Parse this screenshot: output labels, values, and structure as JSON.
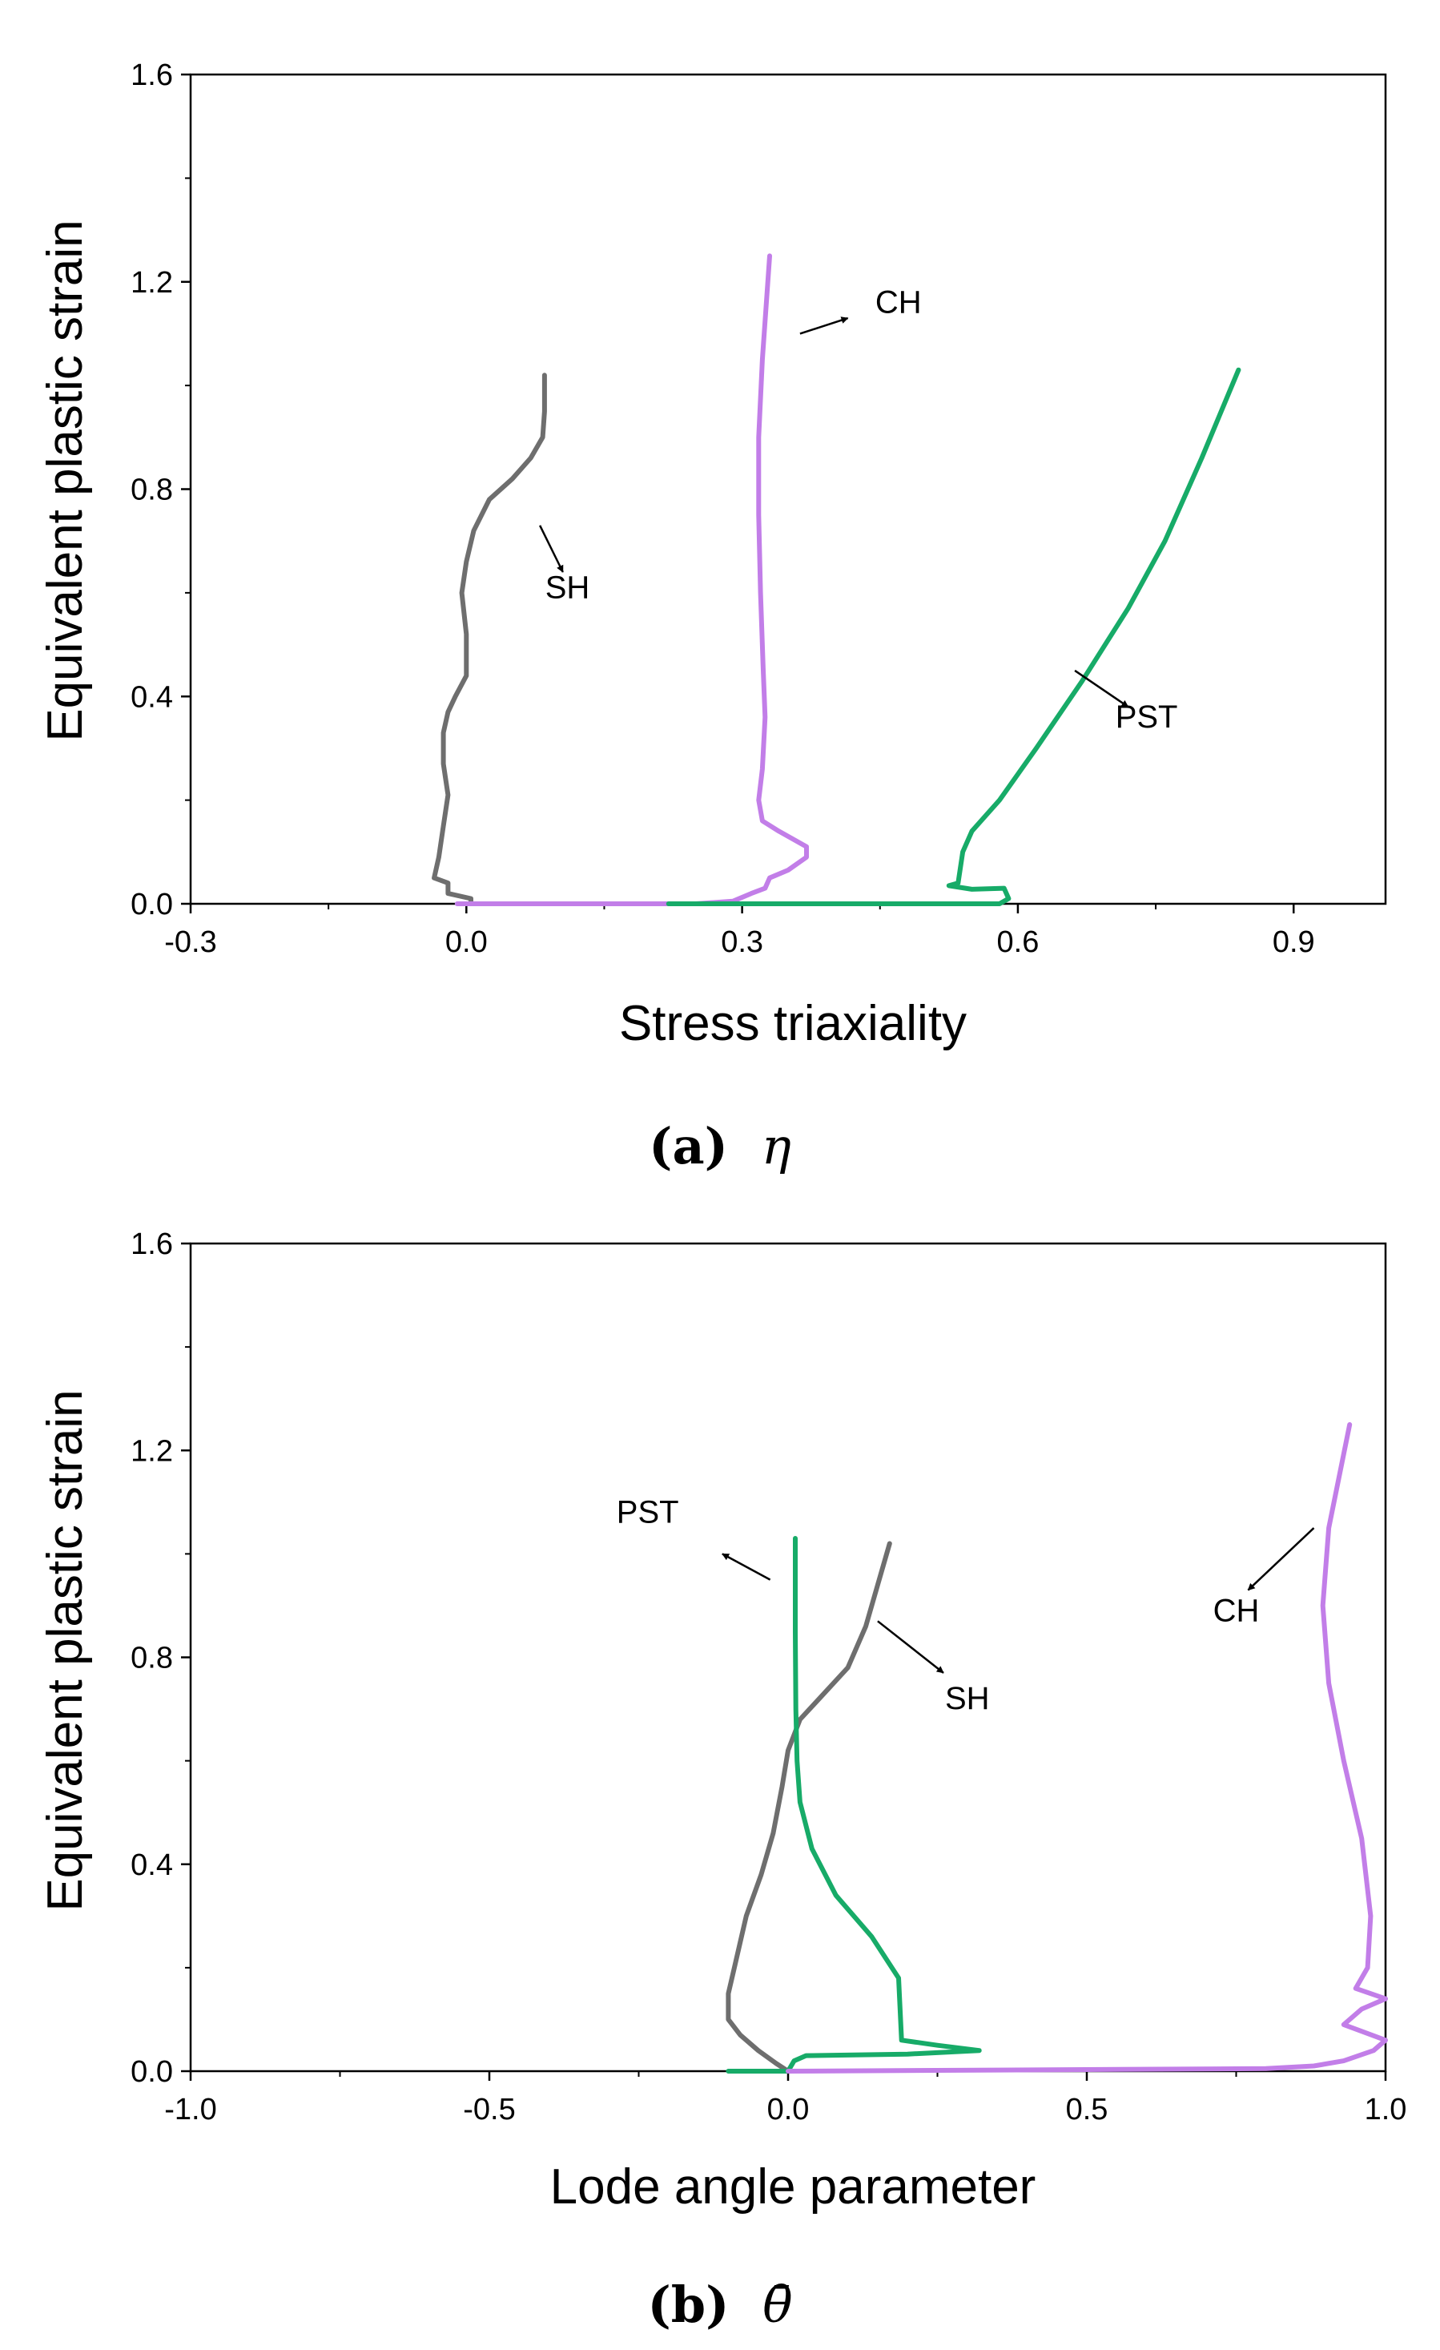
{
  "colors": {
    "SH": "#6e6e6e",
    "CH": "#c27ee8",
    "PST": "#17ab68"
  },
  "chart_data": [
    {
      "type": "line",
      "xlabel": "Stress triaxiality",
      "ylabel": "Equivalent plastic strain",
      "xlim": [
        -0.3,
        1.0
      ],
      "ylim": [
        0.0,
        1.6
      ],
      "xticks": [
        -0.3,
        0.0,
        0.3,
        0.6,
        0.9
      ],
      "xtick_labels": [
        "-0.3",
        "0.0",
        "0.3",
        "0.6",
        "0.9"
      ],
      "yticks": [
        0.0,
        0.4,
        0.8,
        1.2,
        1.6
      ],
      "ytick_labels": [
        "0.0",
        "0.4",
        "0.8",
        "1.2",
        "1.6"
      ],
      "caption": {
        "letter": "(a)",
        "symbol": "η"
      },
      "series": [
        {
          "name": "SH",
          "color": "#6e6e6e",
          "points": [
            [
              0.005,
              0.0
            ],
            [
              0.005,
              0.01
            ],
            [
              -0.02,
              0.02
            ],
            [
              -0.02,
              0.04
            ],
            [
              -0.035,
              0.05
            ],
            [
              -0.03,
              0.09
            ],
            [
              -0.025,
              0.15
            ],
            [
              -0.02,
              0.21
            ],
            [
              -0.025,
              0.27
            ],
            [
              -0.025,
              0.33
            ],
            [
              -0.02,
              0.37
            ],
            [
              -0.012,
              0.4
            ],
            [
              0.0,
              0.44
            ],
            [
              0.0,
              0.52
            ],
            [
              -0.005,
              0.6
            ],
            [
              0.0,
              0.66
            ],
            [
              0.008,
              0.72
            ],
            [
              0.025,
              0.78
            ],
            [
              0.05,
              0.82
            ],
            [
              0.07,
              0.86
            ],
            [
              0.083,
              0.9
            ],
            [
              0.085,
              0.95
            ],
            [
              0.085,
              1.02
            ]
          ]
        },
        {
          "name": "CH",
          "color": "#c27ee8",
          "points": [
            [
              -0.01,
              0.0
            ],
            [
              0.25,
              0.0
            ],
            [
              0.29,
              0.005
            ],
            [
              0.31,
              0.02
            ],
            [
              0.325,
              0.03
            ],
            [
              0.33,
              0.05
            ],
            [
              0.35,
              0.065
            ],
            [
              0.37,
              0.09
            ],
            [
              0.37,
              0.11
            ],
            [
              0.34,
              0.14
            ],
            [
              0.322,
              0.16
            ],
            [
              0.318,
              0.2
            ],
            [
              0.322,
              0.26
            ],
            [
              0.325,
              0.36
            ],
            [
              0.323,
              0.45
            ],
            [
              0.32,
              0.6
            ],
            [
              0.318,
              0.75
            ],
            [
              0.318,
              0.9
            ],
            [
              0.322,
              1.05
            ],
            [
              0.33,
              1.25
            ]
          ]
        },
        {
          "name": "PST",
          "color": "#17ab68",
          "points": [
            [
              0.22,
              0.0
            ],
            [
              0.58,
              0.0
            ],
            [
              0.59,
              0.01
            ],
            [
              0.585,
              0.03
            ],
            [
              0.55,
              0.028
            ],
            [
              0.525,
              0.035
            ],
            [
              0.535,
              0.04
            ],
            [
              0.54,
              0.1
            ],
            [
              0.55,
              0.14
            ],
            [
              0.58,
              0.2
            ],
            [
              0.62,
              0.3
            ],
            [
              0.67,
              0.43
            ],
            [
              0.72,
              0.57
            ],
            [
              0.76,
              0.7
            ],
            [
              0.8,
              0.86
            ],
            [
              0.84,
              1.03
            ]
          ]
        }
      ],
      "annotations": [
        {
          "text": "SH",
          "x": 0.11,
          "y": 0.59
        },
        {
          "text": "CH",
          "x": 0.47,
          "y": 1.14
        },
        {
          "text": "PST",
          "x": 0.74,
          "y": 0.34
        }
      ]
    },
    {
      "type": "line",
      "xlabel": "Lode angle parameter",
      "ylabel": "Equivalent plastic strain",
      "xlim": [
        -1.0,
        1.0
      ],
      "ylim": [
        0.0,
        1.6
      ],
      "xticks": [
        -1.0,
        -0.5,
        0.0,
        0.5,
        1.0
      ],
      "xtick_labels": [
        "-1.0",
        "-0.5",
        "0.0",
        "0.5",
        "1.0"
      ],
      "yticks": [
        0.0,
        0.4,
        0.8,
        1.2,
        1.6
      ],
      "ytick_labels": [
        "0.0",
        "0.4",
        "0.8",
        "1.2",
        "1.6"
      ],
      "caption": {
        "letter": "(b)",
        "symbol": "θ̄"
      },
      "series": [
        {
          "name": "SH",
          "color": "#6e6e6e",
          "points": [
            [
              0.0,
              0.0
            ],
            [
              -0.02,
              0.015
            ],
            [
              -0.05,
              0.04
            ],
            [
              -0.08,
              0.07
            ],
            [
              -0.1,
              0.1
            ],
            [
              -0.1,
              0.15
            ],
            [
              -0.09,
              0.2
            ],
            [
              -0.07,
              0.3
            ],
            [
              -0.045,
              0.38
            ],
            [
              -0.025,
              0.46
            ],
            [
              -0.01,
              0.55
            ],
            [
              0.0,
              0.62
            ],
            [
              0.02,
              0.68
            ],
            [
              0.06,
              0.73
            ],
            [
              0.1,
              0.78
            ],
            [
              0.13,
              0.86
            ],
            [
              0.15,
              0.94
            ],
            [
              0.17,
              1.02
            ]
          ]
        },
        {
          "name": "PST",
          "color": "#17ab68",
          "points": [
            [
              -0.1,
              0.0
            ],
            [
              0.0,
              0.0
            ],
            [
              0.01,
              0.02
            ],
            [
              0.03,
              0.03
            ],
            [
              0.2,
              0.033
            ],
            [
              0.32,
              0.04
            ],
            [
              0.25,
              0.05
            ],
            [
              0.19,
              0.06
            ],
            [
              0.185,
              0.18
            ],
            [
              0.14,
              0.26
            ],
            [
              0.08,
              0.34
            ],
            [
              0.04,
              0.43
            ],
            [
              0.02,
              0.52
            ],
            [
              0.015,
              0.6
            ],
            [
              0.013,
              0.7
            ],
            [
              0.012,
              0.85
            ],
            [
              0.012,
              1.03
            ]
          ]
        },
        {
          "name": "CH",
          "color": "#c27ee8",
          "points": [
            [
              0.0,
              0.0
            ],
            [
              0.8,
              0.005
            ],
            [
              0.88,
              0.01
            ],
            [
              0.93,
              0.02
            ],
            [
              0.98,
              0.04
            ],
            [
              1.0,
              0.06
            ],
            [
              0.93,
              0.09
            ],
            [
              0.96,
              0.12
            ],
            [
              1.0,
              0.14
            ],
            [
              0.95,
              0.16
            ],
            [
              0.97,
              0.2
            ],
            [
              0.975,
              0.3
            ],
            [
              0.96,
              0.45
            ],
            [
              0.93,
              0.6
            ],
            [
              0.905,
              0.75
            ],
            [
              0.895,
              0.9
            ],
            [
              0.905,
              1.05
            ],
            [
              0.94,
              1.25
            ]
          ]
        }
      ],
      "annotations": [
        {
          "text": "PST",
          "x": -0.235,
          "y": 1.06
        },
        {
          "text": "SH",
          "x": 0.3,
          "y": 0.7
        },
        {
          "text": "CH",
          "x": 0.75,
          "y": 0.87
        }
      ]
    }
  ]
}
